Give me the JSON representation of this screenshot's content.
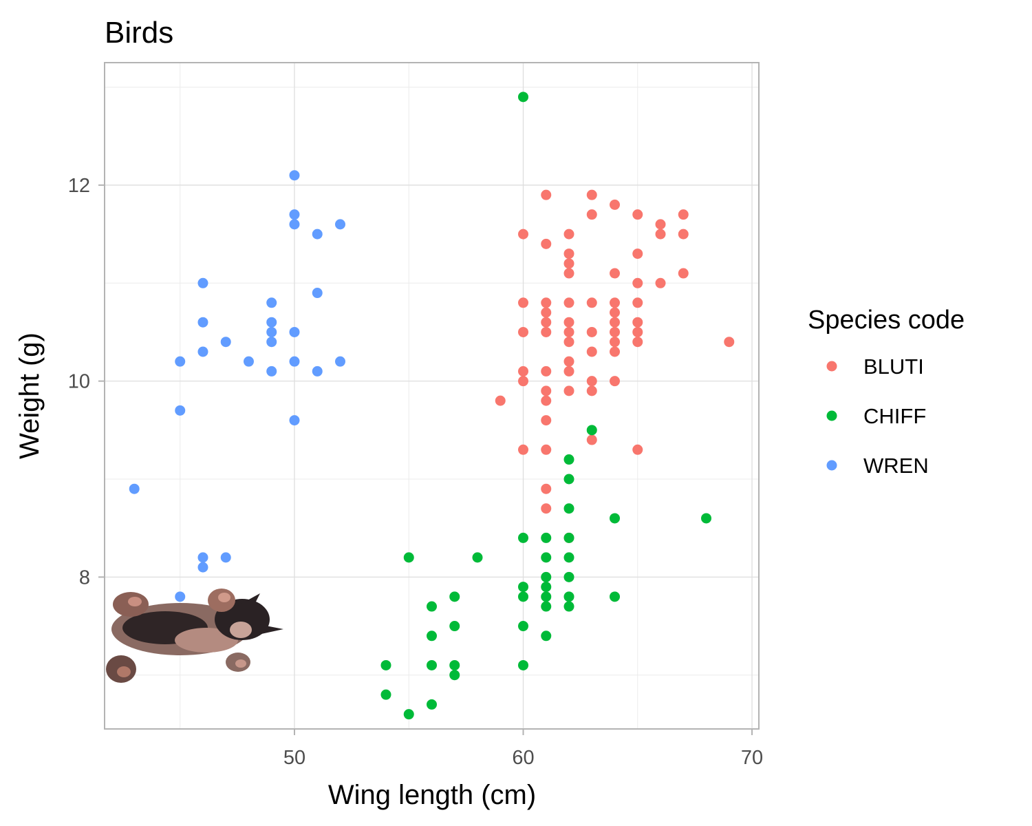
{
  "chart_data": {
    "type": "scatter",
    "title": "Birds",
    "xlabel": "Wing length (cm)",
    "ylabel": "Weight (g)",
    "xlim": [
      41.7,
      70.3
    ],
    "ylim": [
      6.45,
      13.25
    ],
    "x_ticks": [
      50,
      60,
      70
    ],
    "y_ticks": [
      8,
      10,
      12
    ],
    "x_tick_labels": [
      "50",
      "60",
      "70"
    ],
    "y_tick_labels": [
      "8",
      "10",
      "12"
    ],
    "grid": true,
    "legend": {
      "title": "Species code",
      "placement": "right"
    },
    "series": [
      {
        "name": "BLUTI",
        "color": "#F8766D",
        "points": [
          [
            59,
            9.8
          ],
          [
            60,
            11.5
          ],
          [
            60,
            10.8
          ],
          [
            60,
            10.5
          ],
          [
            60,
            10.1
          ],
          [
            60,
            10.0
          ],
          [
            60,
            9.3
          ],
          [
            61,
            11.9
          ],
          [
            61,
            11.4
          ],
          [
            61,
            10.8
          ],
          [
            61,
            10.7
          ],
          [
            61,
            10.6
          ],
          [
            61,
            10.5
          ],
          [
            61,
            10.1
          ],
          [
            61,
            9.9
          ],
          [
            61,
            9.8
          ],
          [
            61,
            9.6
          ],
          [
            61,
            9.3
          ],
          [
            61,
            8.9
          ],
          [
            61,
            8.7
          ],
          [
            62,
            11.5
          ],
          [
            62,
            11.3
          ],
          [
            62,
            11.2
          ],
          [
            62,
            11.1
          ],
          [
            62,
            10.8
          ],
          [
            62,
            10.6
          ],
          [
            62,
            10.5
          ],
          [
            62,
            10.4
          ],
          [
            62,
            10.2
          ],
          [
            62,
            10.1
          ],
          [
            62,
            9.9
          ],
          [
            62,
            8.4
          ],
          [
            63,
            11.9
          ],
          [
            63,
            11.7
          ],
          [
            63,
            10.8
          ],
          [
            63,
            10.5
          ],
          [
            63,
            10.3
          ],
          [
            63,
            10.0
          ],
          [
            63,
            9.9
          ],
          [
            63,
            9.4
          ],
          [
            64,
            11.8
          ],
          [
            64,
            11.1
          ],
          [
            64,
            10.8
          ],
          [
            64,
            10.7
          ],
          [
            64,
            10.6
          ],
          [
            64,
            10.5
          ],
          [
            64,
            10.4
          ],
          [
            64,
            10.3
          ],
          [
            64,
            10.0
          ],
          [
            65,
            11.7
          ],
          [
            65,
            11.3
          ],
          [
            65,
            11.0
          ],
          [
            65,
            10.8
          ],
          [
            65,
            10.6
          ],
          [
            65,
            10.5
          ],
          [
            65,
            10.4
          ],
          [
            65,
            9.3
          ],
          [
            66,
            11.6
          ],
          [
            66,
            11.5
          ],
          [
            66,
            11.0
          ],
          [
            67,
            11.7
          ],
          [
            67,
            11.5
          ],
          [
            67,
            11.1
          ],
          [
            69,
            10.4
          ]
        ]
      },
      {
        "name": "CHIFF",
        "color": "#00BA38",
        "points": [
          [
            54,
            7.1
          ],
          [
            54,
            6.8
          ],
          [
            55,
            8.2
          ],
          [
            55,
            6.6
          ],
          [
            56,
            7.7
          ],
          [
            56,
            7.4
          ],
          [
            56,
            7.1
          ],
          [
            56,
            6.7
          ],
          [
            57,
            7.8
          ],
          [
            57,
            7.5
          ],
          [
            57,
            7.1
          ],
          [
            57,
            7.0
          ],
          [
            58,
            8.2
          ],
          [
            60,
            12.9
          ],
          [
            60,
            8.4
          ],
          [
            60,
            7.9
          ],
          [
            60,
            7.8
          ],
          [
            60,
            7.5
          ],
          [
            60,
            7.1
          ],
          [
            61,
            8.4
          ],
          [
            61,
            8.2
          ],
          [
            61,
            8.0
          ],
          [
            61,
            7.9
          ],
          [
            61,
            7.8
          ],
          [
            61,
            7.7
          ],
          [
            61,
            7.4
          ],
          [
            62,
            9.2
          ],
          [
            62,
            9.0
          ],
          [
            62,
            8.7
          ],
          [
            62,
            8.4
          ],
          [
            62,
            8.2
          ],
          [
            62,
            8.0
          ],
          [
            62,
            7.8
          ],
          [
            62,
            7.7
          ],
          [
            63,
            9.5
          ],
          [
            64,
            8.6
          ],
          [
            64,
            7.8
          ],
          [
            68,
            8.6
          ]
        ]
      },
      {
        "name": "WREN",
        "color": "#619CFF",
        "points": [
          [
            43,
            8.9
          ],
          [
            45,
            10.2
          ],
          [
            45,
            9.7
          ],
          [
            45,
            7.8
          ],
          [
            46,
            11.0
          ],
          [
            46,
            10.6
          ],
          [
            46,
            10.3
          ],
          [
            46,
            8.2
          ],
          [
            46,
            8.1
          ],
          [
            47,
            10.4
          ],
          [
            47,
            8.2
          ],
          [
            48,
            10.2
          ],
          [
            49,
            10.8
          ],
          [
            49,
            10.6
          ],
          [
            49,
            10.5
          ],
          [
            49,
            10.4
          ],
          [
            49,
            10.1
          ],
          [
            50,
            12.1
          ],
          [
            50,
            11.7
          ],
          [
            50,
            11.6
          ],
          [
            50,
            10.5
          ],
          [
            50,
            10.2
          ],
          [
            50,
            9.6
          ],
          [
            51,
            11.5
          ],
          [
            51,
            10.9
          ],
          [
            51,
            10.1
          ],
          [
            52,
            11.6
          ],
          [
            52,
            10.2
          ]
        ]
      }
    ]
  },
  "decoration": {
    "image_name": "kitten-photo"
  }
}
